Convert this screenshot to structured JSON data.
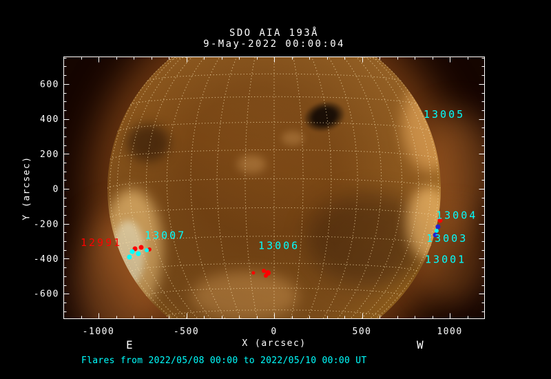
{
  "header": {
    "instrument_title": "SDO AIA 193Å",
    "timestamp": "9-May-2022 00:00:04"
  },
  "axes": {
    "x_label": "X (arcsec)",
    "y_label": "Y (arcsec)",
    "east_label": "E",
    "west_label": "W",
    "x_ticks": [
      -1000,
      -500,
      0,
      500,
      1000
    ],
    "y_ticks": [
      600,
      400,
      200,
      0,
      -200,
      -400,
      -600
    ],
    "x_range": [
      -1200,
      1200
    ],
    "y_range": [
      -745,
      757
    ],
    "x_minor_step": 100,
    "y_minor_step": 50
  },
  "footer": {
    "flare_period": "Flares from 2022/05/08 00:00 to 2022/05/10 00:00 UT"
  },
  "colors": {
    "background": "#000000",
    "axis": "#ffffff",
    "grid": "#f2d9a6",
    "cyan": "#00ffff",
    "red": "#ff0000",
    "blue": "#2323cc"
  },
  "chart_data": {
    "type": "scatter",
    "title": "SDO AIA 193Å",
    "subtitle": "9-May-2022 00:00:04",
    "xlabel": "X (arcsec)",
    "ylabel": "Y (arcsec)",
    "xlim": [
      -1200,
      1200
    ],
    "ylim": [
      -745,
      757
    ],
    "grid": "heliographic dotted",
    "sun": {
      "radius_arcsec": 950,
      "grid_step_deg": 10,
      "b0_deg": -3.5
    },
    "active_region_labels": [
      {
        "id": "13005",
        "x": 851,
        "y": 424,
        "color": "#00ffff"
      },
      {
        "id": "13004",
        "x": 922,
        "y": -154,
        "color": "#00ffff"
      },
      {
        "id": "13003",
        "x": 867,
        "y": -286,
        "color": "#00ffff"
      },
      {
        "id": "13001",
        "x": 859,
        "y": -406,
        "color": "#00ffff"
      },
      {
        "id": "13007",
        "x": -737,
        "y": -268,
        "color": "#00ffff"
      },
      {
        "id": "13006",
        "x": -90,
        "y": -327,
        "color": "#00ffff"
      },
      {
        "id": "12991",
        "x": -1102,
        "y": -310,
        "color": "#ff0000"
      }
    ],
    "flare_markers": [
      {
        "x": -792,
        "y": -343,
        "color": "#ff0000",
        "r": 3.5
      },
      {
        "x": -757,
        "y": -335,
        "color": "#ff0000",
        "r": 3.5
      },
      {
        "x": -710,
        "y": -347,
        "color": "#ff0000",
        "r": 3
      },
      {
        "x": -824,
        "y": -390,
        "color": "#00ffff",
        "r": 3.5
      },
      {
        "x": -808,
        "y": -359,
        "color": "#00ffff",
        "r": 3.5
      },
      {
        "x": -773,
        "y": -371,
        "color": "#00ffff",
        "r": 3.5
      },
      {
        "x": -725,
        "y": -351,
        "color": "#00ffff",
        "r": 3
      },
      {
        "x": -118,
        "y": -481,
        "color": "#ff0000",
        "r": 2.5
      },
      {
        "x": -59,
        "y": -469,
        "color": "#ff0000",
        "r": 3
      },
      {
        "x": -35,
        "y": -481,
        "color": "#ff0000",
        "r": 4
      },
      {
        "x": -47,
        "y": -497,
        "color": "#ff0000",
        "r": 3
      },
      {
        "x": 945,
        "y": -181,
        "color": "#ff0000",
        "r": 3.5
      },
      {
        "x": 933,
        "y": -217,
        "color": "#2323cc",
        "r": 3.5
      },
      {
        "x": 925,
        "y": -240,
        "color": "#00ffff",
        "r": 3
      },
      {
        "x": 918,
        "y": -264,
        "color": "#2323cc",
        "r": 3.5
      }
    ]
  }
}
